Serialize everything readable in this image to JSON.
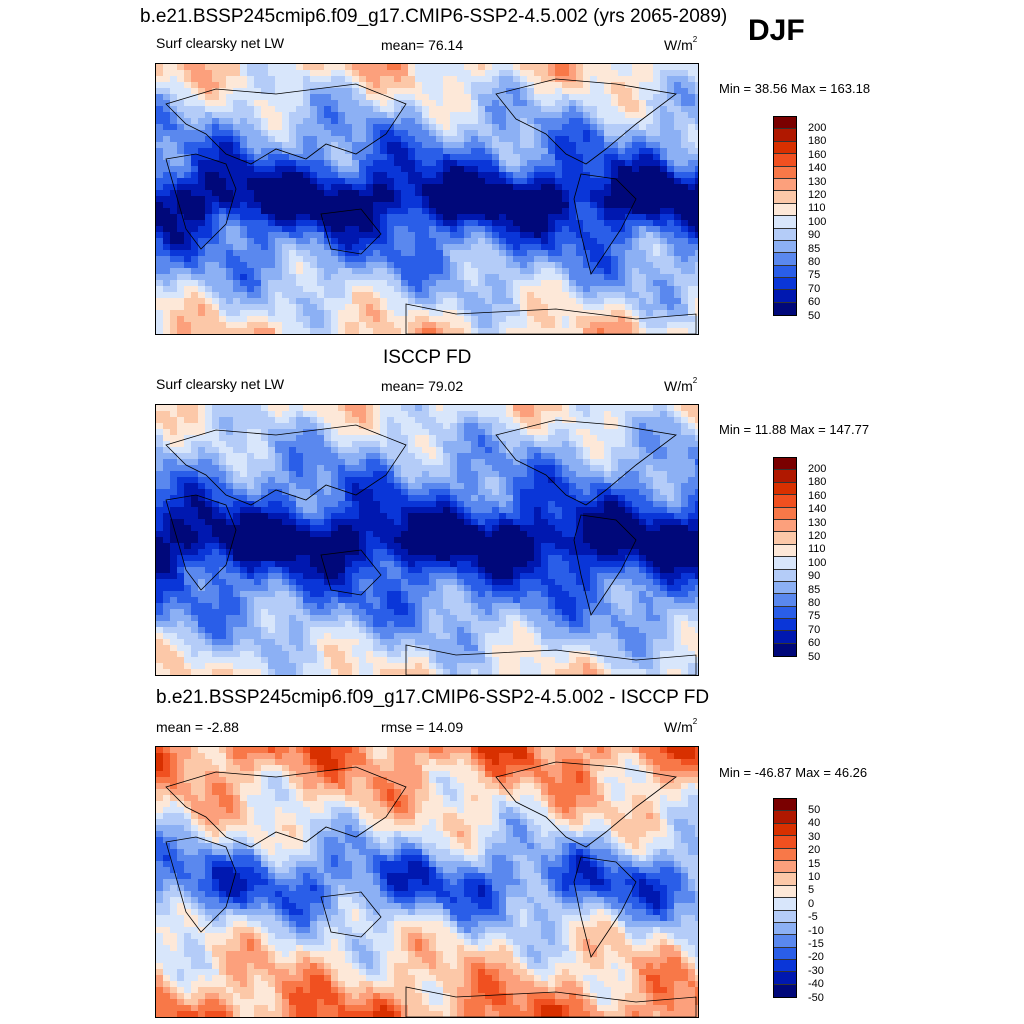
{
  "season": "DJF",
  "panels": [
    {
      "title": "b.e21.BSSP245cmip6.f09_g17.CMIP6-SSP2-4.5.002 (yrs 2065-2089)",
      "left": "Surf clearsky net LW",
      "center": "mean=  76.14",
      "units": "W/m",
      "units_sup": "2",
      "minmax": "Min =  38.56 Max = 163.18",
      "levels": [
        "200",
        "180",
        "160",
        "140",
        "130",
        "120",
        "110",
        "100",
        "90",
        "85",
        "80",
        "75",
        "70",
        "60",
        "50"
      ],
      "colors": [
        "#7a0000",
        "#b01800",
        "#d83000",
        "#f05020",
        "#f87848",
        "#fca07c",
        "#fcc8a8",
        "#fde8d8",
        "#d8e6fb",
        "#b4ccf8",
        "#8cb0f4",
        "#5a88ee",
        "#2a5ee8",
        "#0a36d8",
        "#0018b0",
        "#00087a"
      ],
      "palette": [
        "#00087a",
        "#0018b0",
        "#0a36d8",
        "#2a5ee8",
        "#5a88ee",
        "#8cb0f4",
        "#b4ccf8",
        "#d8e6fb",
        "#fde8d8",
        "#fcc8a8",
        "#fca07c",
        "#f87848"
      ]
    },
    {
      "title": "ISCCP FD",
      "left": "Surf clearsky net LW",
      "center": "mean=  79.02",
      "units": "W/m",
      "units_sup": "2",
      "minmax": "Min =  11.88 Max = 147.77",
      "levels": [
        "200",
        "180",
        "160",
        "140",
        "130",
        "120",
        "110",
        "100",
        "90",
        "85",
        "80",
        "75",
        "70",
        "60",
        "50"
      ],
      "colors": [
        "#7a0000",
        "#b01800",
        "#d83000",
        "#f05020",
        "#f87848",
        "#fca07c",
        "#fcc8a8",
        "#fde8d8",
        "#d8e6fb",
        "#b4ccf8",
        "#8cb0f4",
        "#5a88ee",
        "#2a5ee8",
        "#0a36d8",
        "#0018b0",
        "#00087a"
      ],
      "palette": [
        "#00087a",
        "#0018b0",
        "#0a36d8",
        "#2a5ee8",
        "#5a88ee",
        "#8cb0f4",
        "#b4ccf8",
        "#d8e6fb",
        "#fde8d8",
        "#fcc8a8",
        "#fca07c"
      ]
    },
    {
      "title": "b.e21.BSSP245cmip6.f09_g17.CMIP6-SSP2-4.5.002 - ISCCP FD",
      "left": "mean =  -2.88",
      "center": "rmse =  14.09",
      "units": "W/m",
      "units_sup": "2",
      "minmax": "Min = -46.87 Max =  46.26",
      "levels": [
        "50",
        "40",
        "30",
        "20",
        "15",
        "10",
        "5",
        "0",
        "-5",
        "-10",
        "-15",
        "-20",
        "-30",
        "-40",
        "-50"
      ],
      "colors": [
        "#7a0000",
        "#b01800",
        "#d83000",
        "#f05020",
        "#f87848",
        "#fca07c",
        "#fcc8a8",
        "#fde8d8",
        "#d8e6fb",
        "#b4ccf8",
        "#8cb0f4",
        "#5a88ee",
        "#2a5ee8",
        "#0a36d8",
        "#0018b0",
        "#00087a"
      ],
      "palette": [
        "#0018b0",
        "#0a36d8",
        "#2a5ee8",
        "#5a88ee",
        "#8cb0f4",
        "#b4ccf8",
        "#d8e6fb",
        "#fde8d8",
        "#fcc8a8",
        "#fca07c",
        "#f87848",
        "#f05020",
        "#d83000"
      ]
    }
  ]
}
